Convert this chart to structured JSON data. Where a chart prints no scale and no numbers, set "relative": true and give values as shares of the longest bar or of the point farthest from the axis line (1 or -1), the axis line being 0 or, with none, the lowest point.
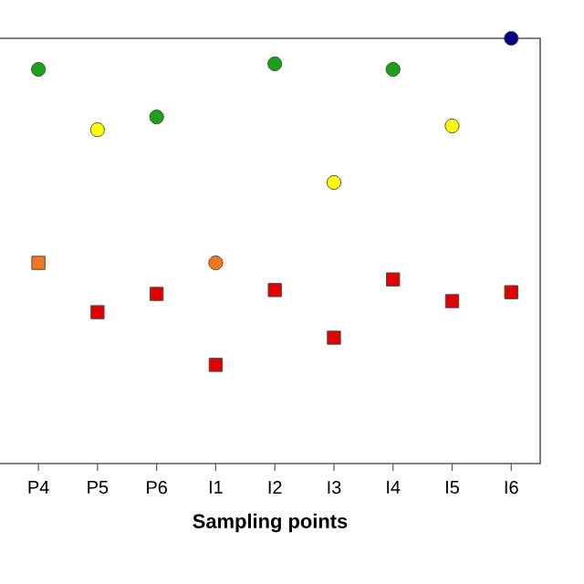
{
  "chart_data": {
    "type": "scatter",
    "relative": true,
    "xlabel": "**Sampling points**",
    "categories": [
      "P4",
      "P5",
      "P6",
      "I1",
      "I2",
      "I3",
      "I4",
      "I5",
      "I6"
    ],
    "series": [
      {
        "color": "#1aa01a",
        "marker": "circle",
        "values": [
          0.927,
          null,
          0.815,
          null,
          0.94,
          null,
          0.927,
          null,
          null
        ]
      },
      {
        "color": "#ffff00",
        "marker": "circle",
        "values": [
          null,
          0.785,
          null,
          null,
          null,
          0.661,
          null,
          0.794,
          null
        ]
      },
      {
        "color": "#000080",
        "marker": "circle",
        "values": [
          null,
          null,
          null,
          null,
          null,
          null,
          null,
          null,
          1
        ]
      },
      {
        "color": "#f07820",
        "marker": "square",
        "values": [
          0.472,
          null,
          null,
          null,
          null,
          null,
          null,
          null,
          null
        ]
      },
      {
        "color": "#f07820",
        "marker": "circle",
        "values": [
          null,
          null,
          null,
          0.472,
          null,
          null,
          null,
          null,
          null
        ]
      },
      {
        "color": "#e00000",
        "marker": "square",
        "values": [
          null,
          0.356,
          0.399,
          0.232,
          0.408,
          0.296,
          0.433,
          0.382,
          0.403
        ]
      }
    ]
  }
}
